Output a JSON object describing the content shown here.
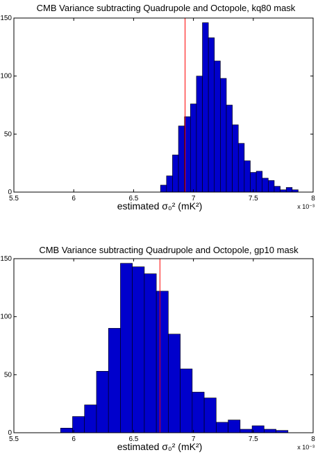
{
  "chart_data": [
    {
      "type": "bar",
      "title": "CMB Variance subtracting Quadrupole and Octopole, kq80 mask",
      "xlabel": "estimated σ₀² (mK²)",
      "x_multiplier": "x 10⁻³",
      "xlim": [
        5.5,
        8
      ],
      "ylim": [
        0,
        150
      ],
      "xticks": [
        "5.5",
        "6",
        "6.5",
        "7",
        "7.5",
        "8"
      ],
      "yticks": [
        "0",
        "50",
        "100",
        "150"
      ],
      "bar_color": "#0000cc",
      "marker_color": "#ff0000",
      "marker_x": 6.93,
      "bin_width": 0.05,
      "bin_centers": [
        6.75,
        6.8,
        6.85,
        6.9,
        6.95,
        7.0,
        7.05,
        7.1,
        7.15,
        7.2,
        7.25,
        7.3,
        7.35,
        7.4,
        7.45,
        7.5,
        7.55,
        7.6,
        7.65,
        7.7,
        7.75,
        7.8,
        7.85
      ],
      "values": [
        6,
        14,
        32,
        57,
        65,
        76,
        100,
        146,
        133,
        113,
        98,
        75,
        58,
        42,
        27,
        17,
        18,
        12,
        10,
        5,
        2,
        4,
        2
      ]
    },
    {
      "type": "bar",
      "title": "CMB Variance subtracting Quadrupole and Octopole, gp10 mask",
      "xlabel": "estimated σ₀² (mK²)",
      "x_multiplier": "x 10⁻³",
      "xlim": [
        5.5,
        8
      ],
      "ylim": [
        0,
        150
      ],
      "xticks": [
        "5.5",
        "6",
        "6.5",
        "7",
        "7.5",
        "8"
      ],
      "yticks": [
        "0",
        "50",
        "100",
        "150"
      ],
      "bar_color": "#0000cc",
      "marker_color": "#ff0000",
      "marker_x": 6.72,
      "bin_width": 0.1,
      "bin_centers": [
        5.94,
        6.04,
        6.14,
        6.24,
        6.34,
        6.44,
        6.54,
        6.64,
        6.74,
        6.84,
        6.94,
        7.04,
        7.14,
        7.24,
        7.34,
        7.44,
        7.54,
        7.64,
        7.74
      ],
      "values": [
        4,
        14,
        24,
        53,
        90,
        146,
        143,
        137,
        122,
        85,
        55,
        35,
        30,
        9,
        11,
        3,
        6,
        3,
        2
      ]
    }
  ]
}
